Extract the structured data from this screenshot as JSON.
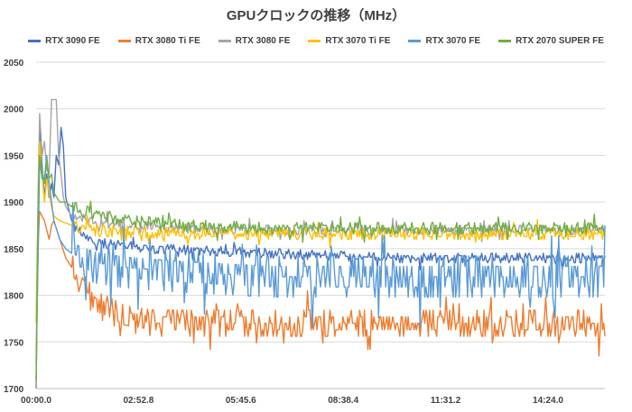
{
  "chart_data": {
    "type": "line",
    "title": "GPUクロックの推移（MHz）",
    "xlabel": "",
    "ylabel": "",
    "ylim": [
      1700,
      2050
    ],
    "yticks": [
      1700,
      1750,
      1800,
      1850,
      1900,
      1950,
      2000,
      2050
    ],
    "xlim_seconds": [
      0,
      960
    ],
    "xticks": [
      "00:00.0",
      "02:52.8",
      "05:45.6",
      "08:38.4",
      "11:31.2",
      "14:24.0"
    ],
    "grid": true,
    "legend_position": "top",
    "series": [
      {
        "name": "RTX 3090 FE",
        "color": "#4472c4",
        "points": [
          [
            0,
            1700
          ],
          [
            3,
            1870
          ],
          [
            6,
            1980
          ],
          [
            10,
            1940
          ],
          [
            14,
            1905
          ],
          [
            18,
            1930
          ],
          [
            22,
            1905
          ],
          [
            26,
            1920
          ],
          [
            30,
            1905
          ],
          [
            34,
            1950
          ],
          [
            38,
            1940
          ],
          [
            42,
            1980
          ],
          [
            46,
            1960
          ],
          [
            50,
            1905
          ],
          [
            54,
            1895
          ],
          [
            60,
            1880
          ],
          [
            70,
            1870
          ],
          [
            90,
            1860
          ],
          [
            120,
            1855
          ],
          [
            200,
            1850
          ],
          [
            400,
            1845
          ],
          [
            600,
            1840
          ],
          [
            960,
            1840
          ]
        ]
      },
      {
        "name": "RTX 3080 Ti FE",
        "color": "#ed7d31",
        "points": [
          [
            0,
            1700
          ],
          [
            3,
            1850
          ],
          [
            6,
            1890
          ],
          [
            10,
            1885
          ],
          [
            14,
            1880
          ],
          [
            18,
            1870
          ],
          [
            22,
            1860
          ],
          [
            26,
            1875
          ],
          [
            30,
            1880
          ],
          [
            40,
            1860
          ],
          [
            50,
            1840
          ],
          [
            60,
            1830
          ],
          [
            70,
            1820
          ],
          [
            80,
            1810
          ],
          [
            90,
            1800
          ],
          [
            100,
            1790
          ],
          [
            120,
            1785
          ],
          [
            150,
            1775
          ],
          [
            200,
            1770
          ],
          [
            300,
            1770
          ],
          [
            450,
            1770
          ],
          [
            600,
            1770
          ],
          [
            750,
            1770
          ],
          [
            960,
            1770
          ]
        ]
      },
      {
        "name": "RTX 3080 FE",
        "color": "#a5a5a5",
        "points": [
          [
            0,
            1700
          ],
          [
            3,
            1900
          ],
          [
            6,
            1995
          ],
          [
            10,
            1950
          ],
          [
            14,
            1965
          ],
          [
            18,
            1935
          ],
          [
            22,
            1930
          ],
          [
            26,
            2010
          ],
          [
            30,
            2010
          ],
          [
            34,
            2010
          ],
          [
            38,
            1950
          ],
          [
            42,
            1930
          ],
          [
            46,
            1905
          ],
          [
            50,
            1895
          ],
          [
            60,
            1885
          ],
          [
            90,
            1880
          ],
          [
            150,
            1875
          ],
          [
            300,
            1870
          ],
          [
            500,
            1870
          ],
          [
            700,
            1870
          ],
          [
            960,
            1870
          ]
        ]
      },
      {
        "name": "RTX 3070 Ti FE",
        "color": "#ffc000",
        "points": [
          [
            0,
            1770
          ],
          [
            3,
            1890
          ],
          [
            6,
            1965
          ],
          [
            10,
            1930
          ],
          [
            14,
            1900
          ],
          [
            18,
            1925
          ],
          [
            22,
            1910
          ],
          [
            26,
            1895
          ],
          [
            30,
            1885
          ],
          [
            40,
            1880
          ],
          [
            60,
            1875
          ],
          [
            90,
            1870
          ],
          [
            150,
            1868
          ],
          [
            300,
            1866
          ],
          [
            500,
            1866
          ],
          [
            700,
            1866
          ],
          [
            960,
            1866
          ]
        ]
      },
      {
        "name": "RTX 3070 FE",
        "color": "#5b9bd5",
        "points": [
          [
            0,
            1725
          ],
          [
            3,
            1830
          ],
          [
            6,
            1945
          ],
          [
            10,
            1925
          ],
          [
            14,
            1925
          ],
          [
            18,
            1950
          ],
          [
            22,
            1920
          ],
          [
            26,
            1900
          ],
          [
            30,
            1880
          ],
          [
            40,
            1860
          ],
          [
            50,
            1850
          ],
          [
            60,
            1845
          ],
          [
            80,
            1840
          ],
          [
            100,
            1835
          ],
          [
            150,
            1830
          ],
          [
            250,
            1825
          ],
          [
            400,
            1820
          ],
          [
            600,
            1820
          ],
          [
            800,
            1820
          ],
          [
            960,
            1820
          ]
        ]
      },
      {
        "name": "RTX 2070 SUPER FE",
        "color": "#70ad47",
        "points": [
          [
            0,
            1710
          ],
          [
            3,
            1900
          ],
          [
            6,
            1950
          ],
          [
            10,
            1935
          ],
          [
            14,
            1920
          ],
          [
            18,
            1945
          ],
          [
            22,
            1925
          ],
          [
            26,
            1930
          ],
          [
            30,
            1910
          ],
          [
            40,
            1900
          ],
          [
            50,
            1900
          ],
          [
            60,
            1895
          ],
          [
            80,
            1890
          ],
          [
            100,
            1888
          ],
          [
            150,
            1880
          ],
          [
            250,
            1875
          ],
          [
            400,
            1872
          ],
          [
            600,
            1872
          ],
          [
            800,
            1872
          ],
          [
            960,
            1872
          ]
        ]
      }
    ]
  }
}
